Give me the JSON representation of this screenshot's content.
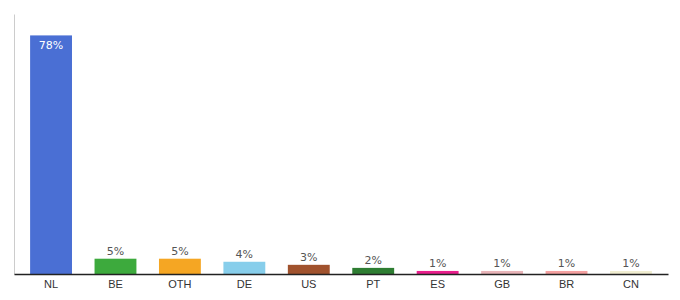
{
  "chart_data": {
    "type": "bar",
    "categories": [
      "NL",
      "BE",
      "OTH",
      "DE",
      "US",
      "PT",
      "ES",
      "GB",
      "BR",
      "CN"
    ],
    "values": [
      78,
      5,
      5,
      4,
      3,
      2,
      1,
      1,
      1,
      1
    ],
    "value_labels": [
      "78%",
      "5%",
      "5%",
      "4%",
      "3%",
      "2%",
      "1%",
      "1%",
      "1%",
      "1%"
    ],
    "colors": [
      "#4a6fd4",
      "#3daa3d",
      "#f5a623",
      "#87ceeb",
      "#a0522d",
      "#2e7d32",
      "#e91e8c",
      "#e8b4b8",
      "#f4a0a0",
      "#f0edd0"
    ],
    "ylim": [
      0,
      85
    ],
    "data_labels": true,
    "tick_labels": "x",
    "grid": false
  }
}
